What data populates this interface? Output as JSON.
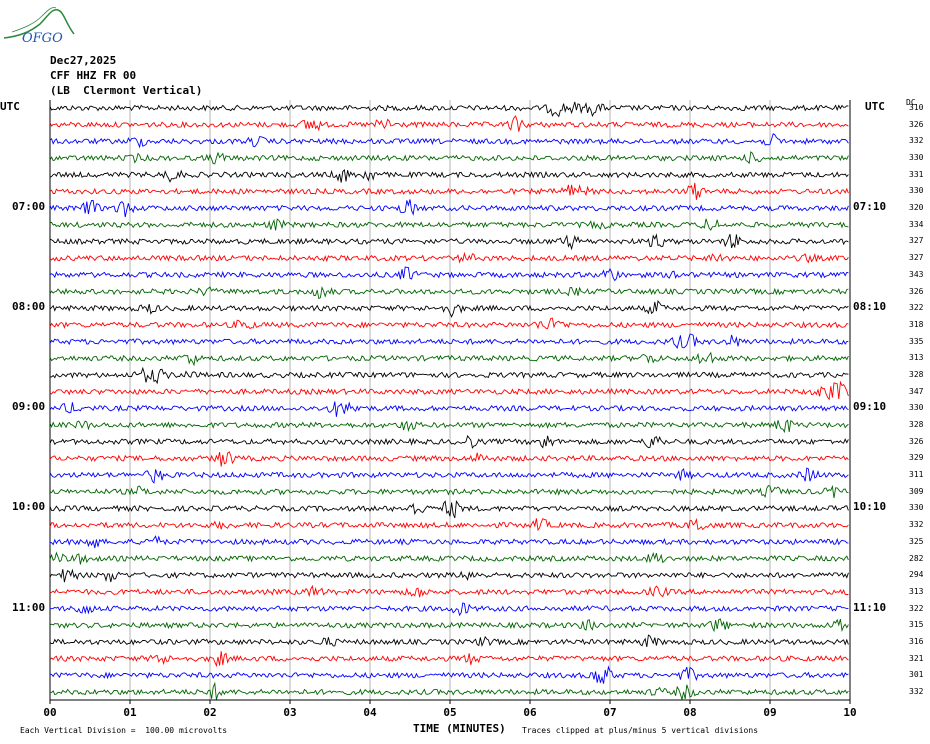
{
  "logo": {
    "text": "OFGO"
  },
  "header": {
    "date": "Dec27,2025",
    "channel": "CFF HHZ FR 00",
    "location": "(LB  Clermont Vertical)"
  },
  "left_axis_label": "UTC",
  "right_axis_label": "UTC",
  "dc_label": "DC",
  "left_hours": [
    "07:00",
    "08:00",
    "09:00",
    "10:00",
    "11:00"
  ],
  "right_hours": [
    "07:10",
    "08:10",
    "09:10",
    "10:10",
    "11:10"
  ],
  "dc_offsets": [
    "310",
    "326",
    "332",
    "330",
    "331",
    "330",
    "320",
    "334",
    "327",
    "327",
    "343",
    "326",
    "322",
    "318",
    "335",
    "313",
    "328",
    "347",
    "330",
    "328",
    "326",
    "329",
    "311",
    "309",
    "330",
    "332",
    "325",
    "282",
    "294",
    "313",
    "322",
    "315",
    "316",
    "321",
    "301",
    "332"
  ],
  "colors": {
    "black": "#000000",
    "red": "#ff0000",
    "blue": "#0000ff",
    "green": "#006400",
    "grid": "#808080",
    "logo": "#2a8a3a",
    "logo_text": "#1f56b5"
  },
  "chart_data": {
    "type": "line",
    "title": "",
    "xlabel": "TIME (MINUTES)",
    "ylabel": "UTC",
    "x_ticks": [
      "00",
      "01",
      "02",
      "03",
      "04",
      "05",
      "06",
      "07",
      "08",
      "09",
      "10"
    ],
    "xlim": [
      0,
      10
    ],
    "traces": 36,
    "minutes_per_trace": 10,
    "color_cycle": [
      "black",
      "red",
      "blue",
      "green"
    ]
  },
  "footer": {
    "left": "Each Vertical Division =  100.00 microvolts",
    "right": "Traces clipped at plus/minus 5 vertical divisions"
  }
}
